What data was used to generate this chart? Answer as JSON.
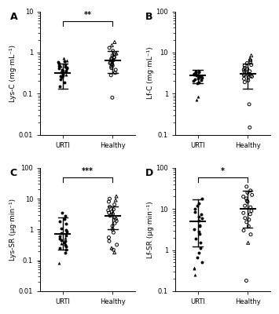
{
  "panels": [
    {
      "label": "A",
      "ylabel": "Lys-C (mg·mL⁻¹)",
      "ylim": [
        0.01,
        10
      ],
      "yticks": [
        0.01,
        0.1,
        1,
        10
      ],
      "yticklabels": [
        "0.01",
        "0.1",
        "1",
        "10"
      ],
      "sig_text": "**",
      "urti_median": 0.32,
      "urti_iqr_low": 0.13,
      "urti_iqr_high": 0.55,
      "healthy_median": 0.65,
      "healthy_iqr_low": 0.32,
      "healthy_iqr_high": 1.1,
      "urti_filled": [
        0.55,
        0.45,
        0.38,
        0.62,
        0.42,
        0.28,
        0.35,
        0.48,
        0.22,
        0.31,
        0.19,
        0.52,
        0.33,
        0.41,
        0.27,
        0.36,
        0.15,
        0.25,
        0.44,
        0.58
      ],
      "urti_triangle": [
        0.72,
        0.63,
        0.48,
        0.38,
        0.29
      ],
      "healthy_open": [
        1.3,
        1.1,
        0.9,
        0.75,
        0.62,
        0.55,
        0.48,
        0.72,
        0.85,
        0.42,
        0.38,
        0.32,
        0.28,
        0.65,
        0.58,
        0.52,
        0.45,
        0.78,
        0.68,
        0.08
      ],
      "healthy_triangle": [
        1.8,
        1.5,
        0.95
      ]
    },
    {
      "label": "B",
      "ylabel": "Lf-C (mg·mL⁻¹)",
      "ylim": [
        0.1,
        100
      ],
      "yticks": [
        0.1,
        1,
        10,
        100
      ],
      "yticklabels": [
        "0.1",
        "1",
        "10",
        "100"
      ],
      "sig_text": "",
      "urti_median": 2.8,
      "urti_iqr_low": 1.8,
      "urti_iqr_high": 3.8,
      "healthy_median": 3.0,
      "healthy_iqr_low": 1.3,
      "healthy_iqr_high": 5.5,
      "urti_filled": [
        3.5,
        2.8,
        2.2,
        3.1,
        2.5,
        1.9,
        2.6,
        3.3,
        2.0,
        2.8,
        2.4,
        3.0,
        2.7,
        2.1,
        2.9,
        3.4,
        2.3,
        2.6,
        1.8,
        3.2,
        2.9
      ],
      "urti_triangle": [
        0.85,
        0.7
      ],
      "healthy_open": [
        6.5,
        5.5,
        4.8,
        4.2,
        3.8,
        3.5,
        3.2,
        2.9,
        2.7,
        2.5,
        2.3,
        2.1,
        1.9,
        3.0,
        3.4,
        4.0,
        5.0,
        6.0,
        2.8,
        2.6,
        0.55,
        0.15
      ],
      "healthy_triangle": [
        7.0,
        8.5
      ]
    },
    {
      "label": "C",
      "ylabel": "Lys-SR (μg·min⁻¹)",
      "ylim": [
        0.01,
        100
      ],
      "yticks": [
        0.01,
        0.1,
        1,
        10,
        100
      ],
      "yticklabels": [
        "0.01",
        "0.1",
        "1",
        "10",
        "100"
      ],
      "sig_text": "***",
      "urti_median": 0.72,
      "urti_iqr_low": 0.22,
      "urti_iqr_high": 2.5,
      "healthy_median": 2.8,
      "healthy_iqr_low": 1.0,
      "healthy_iqr_high": 5.5,
      "urti_filled": [
        3.5,
        2.8,
        2.2,
        1.5,
        1.1,
        0.85,
        0.65,
        0.52,
        0.42,
        0.38,
        0.28,
        0.22,
        0.18,
        0.95,
        1.8,
        0.75,
        0.45,
        0.32,
        0.25,
        0.6
      ],
      "urti_triangle": [
        0.08,
        0.35,
        0.55
      ],
      "healthy_open": [
        10,
        8,
        6.5,
        5.5,
        4.5,
        3.8,
        3.2,
        2.8,
        2.5,
        2.2,
        1.9,
        1.6,
        1.3,
        1.0,
        0.8,
        0.55,
        0.42,
        0.32,
        0.22,
        3.5,
        4.2
      ],
      "healthy_triangle": [
        9,
        12,
        0.18,
        0.25
      ]
    },
    {
      "label": "D",
      "ylabel": "Lf-SR (μg·min⁻¹)",
      "ylim": [
        0.1,
        100
      ],
      "yticks": [
        0.1,
        1,
        10,
        100
      ],
      "yticklabels": [
        "0.1",
        "1",
        "10",
        "100"
      ],
      "sig_text": "*",
      "urti_median": 5.0,
      "urti_iqr_low": 1.2,
      "urti_iqr_high": 17,
      "healthy_median": 10,
      "healthy_iqr_low": 3.5,
      "healthy_iqr_high": 28,
      "urti_filled": [
        18,
        12,
        8.5,
        6.5,
        5.2,
        4.0,
        3.2,
        2.5,
        1.9,
        1.5,
        1.1,
        0.85,
        0.65,
        0.5,
        7.5,
        10,
        14,
        2.8,
        3.8,
        6.0
      ],
      "urti_triangle": [
        0.35,
        0.25,
        0.38
      ],
      "healthy_open": [
        35,
        28,
        22,
        18,
        15,
        12,
        9,
        7.5,
        6.0,
        4.8,
        3.8,
        3.0,
        2.4,
        5.5,
        8,
        11,
        16,
        20,
        25,
        0.18
      ],
      "healthy_triangle": [
        1.5
      ]
    }
  ]
}
